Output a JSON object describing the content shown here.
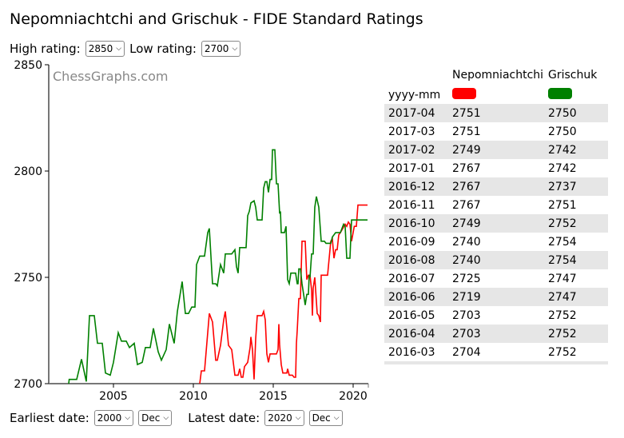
{
  "title": "Nepomniachtchi and Grischuk - FIDE Standard Ratings",
  "controls": {
    "high_label": "High rating:",
    "high_value": "2850",
    "low_label": "Low rating:",
    "low_value": "2700",
    "earliest_label": "Earliest date:",
    "earliest_year": "2000",
    "earliest_month": "Dec",
    "latest_label": "Latest date:",
    "latest_year": "2020",
    "latest_month": "Dec"
  },
  "watermark": "ChessGraphs.com",
  "table": {
    "date_header": "yyyy-mm",
    "players": [
      {
        "name": "Nepomniachtchi",
        "color": "#ff0000"
      },
      {
        "name": "Grischuk",
        "color": "#008000"
      }
    ],
    "rows": [
      [
        "2017-04",
        "2751",
        "2750"
      ],
      [
        "2017-03",
        "2751",
        "2750"
      ],
      [
        "2017-02",
        "2749",
        "2742"
      ],
      [
        "2017-01",
        "2767",
        "2742"
      ],
      [
        "2016-12",
        "2767",
        "2737"
      ],
      [
        "2016-11",
        "2767",
        "2751"
      ],
      [
        "2016-10",
        "2749",
        "2752"
      ],
      [
        "2016-09",
        "2740",
        "2754"
      ],
      [
        "2016-08",
        "2740",
        "2754"
      ],
      [
        "2016-07",
        "2725",
        "2747"
      ],
      [
        "2016-06",
        "2719",
        "2747"
      ],
      [
        "2016-05",
        "2703",
        "2752"
      ],
      [
        "2016-04",
        "2703",
        "2752"
      ],
      [
        "2016-03",
        "2704",
        "2752"
      ]
    ]
  },
  "chart_data": {
    "type": "line",
    "title": "Nepomniachtchi and Grischuk - FIDE Standard Ratings",
    "xlabel": "",
    "ylabel": "",
    "xlim": [
      2000.95,
      2020.95
    ],
    "ylim": [
      2700,
      2850
    ],
    "xticks": [
      "2005",
      "2010",
      "2015",
      "2020"
    ],
    "yticks": [
      "2700",
      "2750",
      "2800",
      "2850"
    ],
    "series": [
      {
        "name": "Nepomniachtchi",
        "color": "#ff0000",
        "points": [
          [
            2010.4,
            2700
          ],
          [
            2010.5,
            2706
          ],
          [
            2010.7,
            2706
          ],
          [
            2011.0,
            2733
          ],
          [
            2011.2,
            2729
          ],
          [
            2011.4,
            2711
          ],
          [
            2011.5,
            2711
          ],
          [
            2011.7,
            2718
          ],
          [
            2011.9,
            2730
          ],
          [
            2012.0,
            2734
          ],
          [
            2012.2,
            2718
          ],
          [
            2012.4,
            2716
          ],
          [
            2012.6,
            2704
          ],
          [
            2012.8,
            2704
          ],
          [
            2012.9,
            2707
          ],
          [
            2013.0,
            2703
          ],
          [
            2013.1,
            2703
          ],
          [
            2013.2,
            2708
          ],
          [
            2013.4,
            2710
          ],
          [
            2013.55,
            2717
          ],
          [
            2013.6,
            2722
          ],
          [
            2013.7,
            2716
          ],
          [
            2013.8,
            2702
          ],
          [
            2013.9,
            2721
          ],
          [
            2014.0,
            2732
          ],
          [
            2014.3,
            2732
          ],
          [
            2014.4,
            2734
          ],
          [
            2014.5,
            2730
          ],
          [
            2014.6,
            2714
          ],
          [
            2014.7,
            2710
          ],
          [
            2014.8,
            2714
          ],
          [
            2015.2,
            2714
          ],
          [
            2015.3,
            2716
          ],
          [
            2015.35,
            2728
          ],
          [
            2015.4,
            2718
          ],
          [
            2015.5,
            2709
          ],
          [
            2015.6,
            2705
          ],
          [
            2015.85,
            2705
          ],
          [
            2015.9,
            2707
          ],
          [
            2016.0,
            2704
          ],
          [
            2016.2,
            2704
          ],
          [
            2016.3,
            2703
          ],
          [
            2016.4,
            2703
          ],
          [
            2016.45,
            2719
          ],
          [
            2016.5,
            2725
          ],
          [
            2016.6,
            2740
          ],
          [
            2016.7,
            2740
          ],
          [
            2016.8,
            2767
          ],
          [
            2017.0,
            2767
          ],
          [
            2017.1,
            2749
          ],
          [
            2017.2,
            2751
          ],
          [
            2017.3,
            2751
          ],
          [
            2017.4,
            2744
          ],
          [
            2017.45,
            2732
          ],
          [
            2017.5,
            2745
          ],
          [
            2017.6,
            2750
          ],
          [
            2017.75,
            2733
          ],
          [
            2017.85,
            2732
          ],
          [
            2017.95,
            2729
          ],
          [
            2018.0,
            2751
          ],
          [
            2018.4,
            2751
          ],
          [
            2018.6,
            2767
          ],
          [
            2018.7,
            2768
          ],
          [
            2018.8,
            2759
          ],
          [
            2018.9,
            2763
          ],
          [
            2019.0,
            2763
          ],
          [
            2019.1,
            2770
          ],
          [
            2019.2,
            2771
          ],
          [
            2019.35,
            2773
          ],
          [
            2019.5,
            2775
          ],
          [
            2019.6,
            2774
          ],
          [
            2019.7,
            2776
          ],
          [
            2019.8,
            2775
          ],
          [
            2019.9,
            2767
          ],
          [
            2020.07,
            2774
          ],
          [
            2020.2,
            2774
          ],
          [
            2020.3,
            2784
          ],
          [
            2020.9,
            2784
          ]
        ]
      },
      {
        "name": "Grischuk",
        "color": "#008000",
        "points": [
          [
            2002.2,
            2700
          ],
          [
            2002.23,
            2702
          ],
          [
            2002.7,
            2702
          ],
          [
            2003.0,
            2711.5
          ],
          [
            2003.3,
            2701
          ],
          [
            2003.5,
            2732
          ],
          [
            2003.8,
            2732
          ],
          [
            2004.0,
            2719
          ],
          [
            2004.3,
            2719
          ],
          [
            2004.5,
            2705
          ],
          [
            2004.8,
            2704
          ],
          [
            2005.0,
            2710
          ],
          [
            2005.3,
            2724
          ],
          [
            2005.5,
            2720
          ],
          [
            2005.8,
            2720
          ],
          [
            2006.0,
            2717
          ],
          [
            2006.3,
            2719
          ],
          [
            2006.5,
            2709
          ],
          [
            2006.8,
            2710
          ],
          [
            2007.0,
            2717
          ],
          [
            2007.3,
            2717
          ],
          [
            2007.5,
            2726
          ],
          [
            2007.8,
            2715
          ],
          [
            2008.0,
            2711
          ],
          [
            2008.3,
            2716
          ],
          [
            2008.5,
            2728
          ],
          [
            2008.8,
            2719
          ],
          [
            2009.0,
            2734
          ],
          [
            2009.3,
            2748
          ],
          [
            2009.5,
            2733
          ],
          [
            2009.7,
            2733
          ],
          [
            2009.9,
            2736
          ],
          [
            2010.1,
            2736
          ],
          [
            2010.2,
            2756
          ],
          [
            2010.4,
            2760
          ],
          [
            2010.7,
            2760
          ],
          [
            2010.9,
            2771
          ],
          [
            2011.0,
            2773
          ],
          [
            2011.2,
            2747
          ],
          [
            2011.4,
            2747
          ],
          [
            2011.5,
            2746
          ],
          [
            2011.7,
            2756
          ],
          [
            2011.9,
            2752
          ],
          [
            2012.0,
            2761
          ],
          [
            2012.4,
            2761
          ],
          [
            2012.6,
            2763
          ],
          [
            2012.7,
            2755
          ],
          [
            2012.8,
            2752
          ],
          [
            2012.9,
            2764
          ],
          [
            2013.3,
            2764
          ],
          [
            2013.4,
            2779
          ],
          [
            2013.5,
            2781
          ],
          [
            2013.6,
            2785
          ],
          [
            2013.8,
            2786
          ],
          [
            2013.9,
            2783
          ],
          [
            2014.0,
            2777
          ],
          [
            2014.3,
            2777
          ],
          [
            2014.4,
            2792
          ],
          [
            2014.5,
            2795
          ],
          [
            2014.6,
            2795
          ],
          [
            2014.7,
            2790
          ],
          [
            2014.8,
            2796
          ],
          [
            2014.9,
            2796
          ],
          [
            2014.95,
            2810
          ],
          [
            2015.1,
            2810
          ],
          [
            2015.2,
            2794
          ],
          [
            2015.3,
            2794
          ],
          [
            2015.4,
            2780
          ],
          [
            2015.45,
            2781
          ],
          [
            2015.5,
            2771
          ],
          [
            2015.7,
            2771
          ],
          [
            2015.8,
            2774
          ],
          [
            2015.9,
            2749
          ],
          [
            2016.0,
            2747
          ],
          [
            2016.1,
            2752
          ],
          [
            2016.4,
            2752
          ],
          [
            2016.5,
            2747
          ],
          [
            2016.55,
            2747
          ],
          [
            2016.6,
            2754
          ],
          [
            2016.7,
            2754
          ],
          [
            2016.8,
            2747
          ],
          [
            2016.9,
            2742
          ],
          [
            2017.0,
            2737
          ],
          [
            2017.1,
            2742
          ],
          [
            2017.2,
            2742
          ],
          [
            2017.25,
            2751
          ],
          [
            2017.3,
            2750
          ],
          [
            2017.4,
            2761
          ],
          [
            2017.5,
            2761
          ],
          [
            2017.6,
            2783
          ],
          [
            2017.7,
            2788
          ],
          [
            2017.85,
            2783
          ],
          [
            2018.0,
            2767
          ],
          [
            2018.2,
            2767
          ],
          [
            2018.3,
            2766
          ],
          [
            2018.6,
            2766
          ],
          [
            2018.7,
            2769
          ],
          [
            2018.8,
            2770
          ],
          [
            2018.9,
            2771
          ],
          [
            2019.2,
            2771
          ],
          [
            2019.4,
            2775
          ],
          [
            2019.5,
            2774
          ],
          [
            2019.6,
            2759
          ],
          [
            2019.8,
            2759
          ],
          [
            2019.9,
            2777
          ],
          [
            2020.9,
            2777
          ]
        ]
      }
    ]
  }
}
